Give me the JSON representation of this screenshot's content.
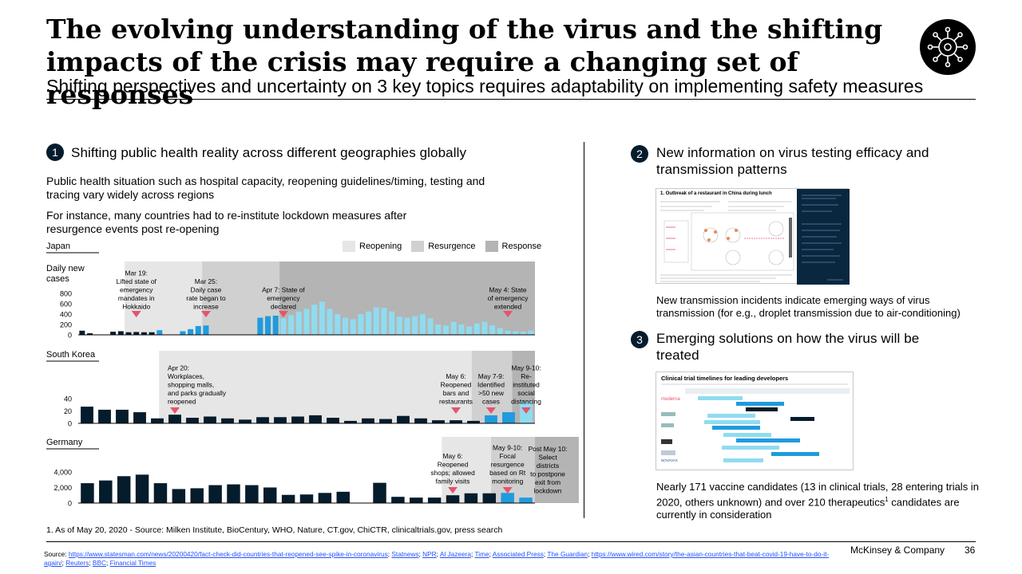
{
  "header": {
    "title": "The evolving understanding of the virus and the shifting impacts of the crisis may require a changing set of responses",
    "subtitle": "Shifting perspectives and uncertainty on 3 key topics requires adaptability on implementing safety measures"
  },
  "section1": {
    "number": "1",
    "heading": "Shifting public health reality across different geographies globally",
    "para1": "Public health situation such as hospital capacity, reopening guidelines/timing, testing and tracing vary widely across regions",
    "para2": "For instance, many countries had to re-institute lockdown measures after resurgence events post re-opening"
  },
  "legend": [
    "Reopening",
    "Resurgence",
    "Response"
  ],
  "section2": {
    "number": "2",
    "heading": "New information on virus testing efficacy and transmission patterns",
    "caption": "New transmission incidents indicate emerging ways of virus transmission (for e.g., droplet transmission due to air-conditioning)",
    "thumb_title": "1. Outbreak of a restaurant in China during lunch"
  },
  "section3": {
    "number": "3",
    "heading": "Emerging solutions on how the virus will be treated",
    "caption_before": "Nearly 171 vaccine candidates (13 in clinical trials, 28 entering trials in 2020, others unknown) and over 210 therapeutics",
    "caption_sup": "1",
    "caption_after": " candidates are currently in consideration",
    "thumb_title": "Clinical trial timelines for leading developers",
    "thumb_logos": [
      "moderna",
      "NOVAVAX"
    ]
  },
  "footnote": "1.   As of May 20, 2020 - Source: Milken Institute, BioCentury, WHO, Nature, CT.gov, ChiCTR, clinicaltrials.gov, press search",
  "source": {
    "prefix": "Source: ",
    "links": [
      "https://www.statesman.com/news/20200420/fact-check-did-countries-that-reopened-see-spike-in-coronavirus",
      "Statnews",
      "NPR",
      "Al Jazeera",
      "Time",
      "Associated Press",
      "The Guardian",
      "https://www.wired.com/story/the-asian-countries-that-beat-covid-19-have-to-do-it-again/",
      "Reuters",
      "BBC",
      "Financial Times"
    ]
  },
  "footer": {
    "brand": "McKinsey & Company",
    "page": "36"
  },
  "colors": {
    "dark": "#051c2c",
    "mid_blue": "#1f9bde",
    "light_blue": "#8fdcf0",
    "marker": "#e5546c",
    "reopening": "#e6e6e6",
    "resurgence": "#d0d0d0",
    "response": "#b4b4b4"
  },
  "chart_data": [
    {
      "type": "bar",
      "country": "Japan",
      "ylabel": "Daily new cases",
      "yticks": [
        800,
        600,
        400,
        200,
        0
      ],
      "ylim": [
        0,
        800
      ],
      "values": [
        80,
        30,
        0,
        0,
        60,
        70,
        50,
        55,
        50,
        50,
        90,
        0,
        0,
        70,
        110,
        170,
        180,
        0,
        0,
        0,
        0,
        0,
        0,
        330,
        360,
        370,
        320,
        380,
        450,
        500,
        580,
        640,
        500,
        400,
        330,
        300,
        400,
        450,
        530,
        520,
        450,
        350,
        330,
        360,
        400,
        320,
        200,
        180,
        250,
        200,
        160,
        220,
        250,
        180,
        130,
        80,
        70,
        60,
        80
      ],
      "value_colors": [
        "dark",
        "dark",
        "dark",
        "dark",
        "dark",
        "dark",
        "dark",
        "dark",
        "dark",
        "dark",
        "mid_blue",
        "mid_blue",
        "mid_blue",
        "mid_blue",
        "mid_blue",
        "mid_blue",
        "mid_blue",
        "mid_blue",
        "mid_blue",
        "mid_blue",
        "mid_blue",
        "mid_blue",
        "mid_blue",
        "mid_blue",
        "mid_blue",
        "mid_blue",
        "light_blue",
        "light_blue",
        "light_blue",
        "light_blue",
        "light_blue",
        "light_blue",
        "light_blue",
        "light_blue",
        "light_blue",
        "light_blue",
        "light_blue",
        "light_blue",
        "light_blue",
        "light_blue",
        "light_blue",
        "light_blue",
        "light_blue",
        "light_blue",
        "light_blue",
        "light_blue",
        "light_blue",
        "light_blue",
        "light_blue",
        "light_blue",
        "light_blue",
        "light_blue",
        "light_blue",
        "light_blue",
        "light_blue",
        "light_blue",
        "light_blue",
        "light_blue",
        "light_blue"
      ],
      "phases": [
        {
          "phase": "reopening",
          "start": 6,
          "end": 16
        },
        {
          "phase": "resurgence",
          "start": 16,
          "end": 26
        },
        {
          "phase": "response",
          "start": 26,
          "end": 59
        }
      ],
      "annotations": [
        {
          "text": "Mar 19: Lifted state of emergency mandates in Hokkaido",
          "lines": [
            "Mar 19:",
            "Lifted state of",
            "emergency",
            "mandates in",
            "Hokkaido"
          ],
          "at": 7
        },
        {
          "text": "Mar 25: Daily case rate began to increase",
          "lines": [
            "Mar 25:",
            "Daily case",
            "rate began to",
            "increase"
          ],
          "at": 16
        },
        {
          "text": "Apr 7: State of emergency declared",
          "lines": [
            "Apr 7: State of",
            "emergency",
            "declared"
          ],
          "at": 26
        },
        {
          "text": "May 4: State of emergency extended",
          "lines": [
            "May 4: State",
            "of emergency",
            "extended"
          ],
          "at": 55
        }
      ]
    },
    {
      "type": "bar",
      "country": "South Korea",
      "yticks": [
        40,
        20,
        0
      ],
      "ylim": [
        0,
        40
      ],
      "values": [
        27,
        22,
        22,
        18,
        8,
        14,
        9,
        11,
        8,
        6,
        10,
        10,
        11,
        13,
        9,
        4,
        8,
        7,
        12,
        8,
        5,
        5,
        4,
        13,
        18,
        35
      ],
      "value_colors": [
        "dark",
        "dark",
        "dark",
        "dark",
        "dark",
        "dark",
        "dark",
        "dark",
        "dark",
        "dark",
        "dark",
        "dark",
        "dark",
        "dark",
        "dark",
        "dark",
        "dark",
        "dark",
        "dark",
        "dark",
        "dark",
        "dark",
        "dark",
        "mid_blue",
        "mid_blue",
        "light_blue"
      ],
      "phases": [
        {
          "phase": "reopening",
          "start": 4.6,
          "end": 22.4
        },
        {
          "phase": "resurgence",
          "start": 22.4,
          "end": 24.7
        },
        {
          "phase": "response",
          "start": 24.7,
          "end": 26
        }
      ],
      "annotations": [
        {
          "text": "Apr 20: Workplaces, shopping malls, and parks gradually reopened",
          "lines": [
            "Apr 20:",
            "Workplaces,",
            "shopping malls,",
            "and parks gradually",
            "reopened"
          ],
          "at": 5,
          "align": "left"
        },
        {
          "text": "May 6: Reopened bars and restaurants",
          "lines": [
            "May 6:",
            "Reopened",
            "bars and",
            "restaurants"
          ],
          "at": 21
        },
        {
          "text": "May 7-9: Identified >50 new cases",
          "lines": [
            "May 7-9:",
            "Identified",
            ">50 new",
            "cases"
          ],
          "at": 23
        },
        {
          "text": "May 9-10: Re-instituted social distancing",
          "lines": [
            "May 9-10:",
            "Re-",
            "instituted",
            "social",
            "distancing"
          ],
          "at": 25
        }
      ]
    },
    {
      "type": "bar",
      "country": "Germany",
      "yticks": [
        "4,000",
        "2,000",
        "0"
      ],
      "ylim": [
        0,
        4300
      ],
      "values": [
        2550,
        2900,
        3450,
        3650,
        2550,
        1800,
        1900,
        2300,
        2400,
        2300,
        2000,
        1050,
        1100,
        1300,
        1450,
        0,
        2600,
        800,
        700,
        700,
        1000,
        1250,
        1250,
        1300,
        700
      ],
      "value_colors": [
        "dark",
        "dark",
        "dark",
        "dark",
        "dark",
        "dark",
        "dark",
        "dark",
        "dark",
        "dark",
        "dark",
        "dark",
        "dark",
        "dark",
        "dark",
        "dark",
        "dark",
        "dark",
        "dark",
        "dark",
        "dark",
        "dark",
        "dark",
        "mid_blue",
        "mid_blue"
      ],
      "phases": [
        {
          "phase": "reopening",
          "start": 19.9,
          "end": 22.6
        },
        {
          "phase": "resurgence",
          "start": 22.6,
          "end": 25
        },
        {
          "phase": "response",
          "start": 25,
          "end": 27.4
        }
      ],
      "annotations": [
        {
          "text": "May 6: Reopened shops; allowed family visits",
          "lines": [
            "May 6:",
            "Reopened",
            "shops; allowed",
            "family visits"
          ],
          "at": 20
        },
        {
          "text": "May 9-10: Focal resurgence based on Rt monitoring",
          "lines": [
            "May 9-10:",
            "Focal",
            "resurgence",
            "based on Rt",
            "monitoring"
          ],
          "at": 23
        },
        {
          "text": "Post May 10: Select districts to postpone exit from lockdown",
          "lines": [
            "Post May 10:",
            "Select",
            "districts",
            "to postpone",
            "exit from",
            "lockdown"
          ],
          "at": 25.2,
          "nomarker": true
        }
      ]
    }
  ]
}
